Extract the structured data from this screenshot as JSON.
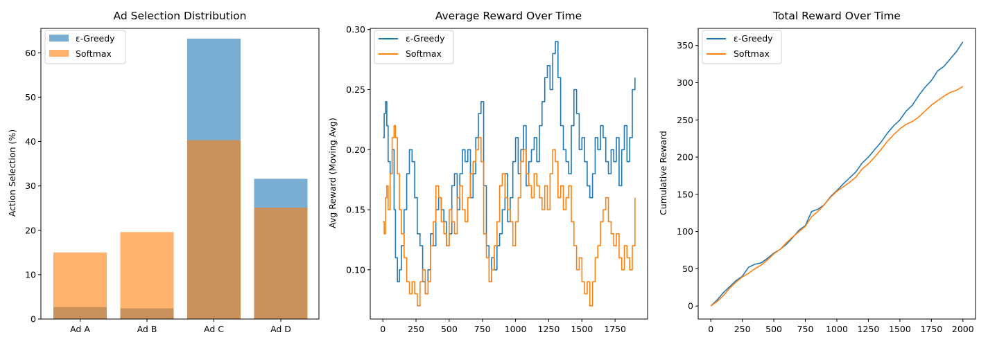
{
  "chart_data": [
    {
      "type": "bar",
      "title": "Ad Selection Distribution",
      "xlabel": "",
      "ylabel": "Action Selection (%)",
      "ylim": [
        0,
        65.5
      ],
      "yticks": [
        0,
        10,
        20,
        30,
        40,
        50,
        60
      ],
      "categories": [
        "Ad A",
        "Ad B",
        "Ad C",
        "Ad D"
      ],
      "legend_position": "top-left",
      "series": [
        {
          "name": "ε-Greedy",
          "color": "#1f77b4",
          "opacity": 0.6,
          "values": [
            2.7,
            2.4,
            63.2,
            31.6
          ]
        },
        {
          "name": "Softmax",
          "color": "#ff7f0e",
          "opacity": 0.6,
          "values": [
            15.0,
            19.6,
            40.3,
            25.1
          ]
        }
      ]
    },
    {
      "type": "line",
      "title": "Average Reward Over Time",
      "xlabel": "",
      "ylabel": "Avg Reward (Moving Avg)",
      "xlim": [
        -95,
        1995
      ],
      "ylim": [
        0.059,
        0.301
      ],
      "xticks": [
        0,
        250,
        500,
        750,
        1000,
        1250,
        1500,
        1750
      ],
      "yticks": [
        0.1,
        0.15,
        0.2,
        0.25,
        0.3
      ],
      "legend_position": "top-left",
      "series": [
        {
          "name": "ε-Greedy",
          "color": "#1f77b4",
          "x": [
            0,
            10,
            20,
            30,
            40,
            55,
            70,
            85,
            95,
            110,
            125,
            140,
            160,
            180,
            200,
            220,
            240,
            260,
            280,
            300,
            320,
            340,
            360,
            380,
            400,
            420,
            440,
            460,
            480,
            500,
            520,
            540,
            560,
            580,
            600,
            620,
            640,
            660,
            680,
            700,
            720,
            740,
            760,
            780,
            800,
            820,
            840,
            860,
            880,
            900,
            920,
            940,
            960,
            980,
            1000,
            1020,
            1040,
            1060,
            1080,
            1100,
            1120,
            1140,
            1160,
            1180,
            1200,
            1220,
            1240,
            1260,
            1280,
            1300,
            1320,
            1340,
            1360,
            1380,
            1400,
            1420,
            1440,
            1460,
            1480,
            1500,
            1520,
            1540,
            1560,
            1580,
            1600,
            1620,
            1640,
            1660,
            1680,
            1700,
            1720,
            1740,
            1760,
            1780,
            1800,
            1820,
            1840,
            1860,
            1880,
            1900
          ],
          "y": [
            0.21,
            0.23,
            0.24,
            0.22,
            0.19,
            0.18,
            0.2,
            0.15,
            0.11,
            0.09,
            0.1,
            0.12,
            0.15,
            0.18,
            0.2,
            0.19,
            0.16,
            0.13,
            0.12,
            0.09,
            0.08,
            0.1,
            0.13,
            0.12,
            0.15,
            0.16,
            0.15,
            0.14,
            0.12,
            0.13,
            0.17,
            0.18,
            0.15,
            0.18,
            0.2,
            0.19,
            0.2,
            0.16,
            0.18,
            0.21,
            0.23,
            0.24,
            0.17,
            0.12,
            0.09,
            0.11,
            0.1,
            0.12,
            0.13,
            0.15,
            0.18,
            0.14,
            0.16,
            0.19,
            0.21,
            0.18,
            0.2,
            0.22,
            0.17,
            0.19,
            0.2,
            0.21,
            0.19,
            0.22,
            0.24,
            0.26,
            0.27,
            0.25,
            0.28,
            0.29,
            0.26,
            0.22,
            0.2,
            0.19,
            0.18,
            0.22,
            0.25,
            0.23,
            0.2,
            0.21,
            0.19,
            0.17,
            0.16,
            0.18,
            0.21,
            0.2,
            0.22,
            0.21,
            0.19,
            0.18,
            0.2,
            0.19,
            0.21,
            0.17,
            0.2,
            0.22,
            0.19,
            0.21,
            0.25,
            0.26
          ]
        },
        {
          "name": "Softmax",
          "color": "#ff7f0e",
          "x": [
            0,
            10,
            20,
            30,
            40,
            55,
            70,
            85,
            95,
            110,
            125,
            140,
            160,
            180,
            200,
            220,
            240,
            260,
            280,
            300,
            320,
            340,
            360,
            380,
            400,
            420,
            440,
            460,
            480,
            500,
            520,
            540,
            560,
            580,
            600,
            620,
            640,
            660,
            680,
            700,
            720,
            740,
            760,
            780,
            800,
            820,
            840,
            860,
            880,
            900,
            920,
            940,
            960,
            980,
            1000,
            1020,
            1040,
            1060,
            1080,
            1100,
            1120,
            1140,
            1160,
            1180,
            1200,
            1220,
            1240,
            1260,
            1280,
            1300,
            1320,
            1340,
            1360,
            1380,
            1400,
            1420,
            1440,
            1460,
            1480,
            1500,
            1520,
            1540,
            1560,
            1580,
            1600,
            1620,
            1640,
            1660,
            1680,
            1700,
            1720,
            1740,
            1760,
            1780,
            1800,
            1820,
            1840,
            1860,
            1880,
            1900
          ],
          "y": [
            0.14,
            0.13,
            0.16,
            0.17,
            0.15,
            0.18,
            0.21,
            0.22,
            0.21,
            0.18,
            0.15,
            0.13,
            0.11,
            0.09,
            0.08,
            0.09,
            0.08,
            0.07,
            0.09,
            0.1,
            0.08,
            0.09,
            0.12,
            0.14,
            0.17,
            0.16,
            0.14,
            0.13,
            0.12,
            0.15,
            0.14,
            0.13,
            0.16,
            0.17,
            0.15,
            0.14,
            0.16,
            0.18,
            0.19,
            0.2,
            0.21,
            0.19,
            0.13,
            0.11,
            0.09,
            0.1,
            0.12,
            0.14,
            0.17,
            0.18,
            0.16,
            0.15,
            0.14,
            0.12,
            0.14,
            0.16,
            0.19,
            0.2,
            0.18,
            0.17,
            0.16,
            0.18,
            0.17,
            0.16,
            0.15,
            0.17,
            0.15,
            0.18,
            0.2,
            0.19,
            0.16,
            0.17,
            0.15,
            0.16,
            0.17,
            0.14,
            0.12,
            0.1,
            0.11,
            0.09,
            0.08,
            0.09,
            0.07,
            0.09,
            0.11,
            0.12,
            0.14,
            0.15,
            0.16,
            0.14,
            0.13,
            0.12,
            0.13,
            0.11,
            0.1,
            0.12,
            0.11,
            0.1,
            0.12,
            0.16
          ]
        }
      ]
    },
    {
      "type": "line",
      "title": "Total Reward Over Time",
      "xlabel": "",
      "ylabel": "Cumulative Reward",
      "xlim": [
        -100,
        2100
      ],
      "ylim": [
        -17.5,
        373
      ],
      "xticks": [
        0,
        250,
        500,
        750,
        1000,
        1250,
        1500,
        1750,
        2000
      ],
      "yticks": [
        0,
        50,
        100,
        150,
        200,
        250,
        300,
        350
      ],
      "legend_position": "top-left",
      "series": [
        {
          "name": "ε-Greedy",
          "color": "#1f77b4",
          "x": [
            0,
            50,
            100,
            150,
            200,
            250,
            300,
            350,
            400,
            450,
            500,
            550,
            600,
            650,
            700,
            750,
            800,
            850,
            900,
            950,
            1000,
            1050,
            1100,
            1150,
            1200,
            1250,
            1300,
            1350,
            1400,
            1450,
            1500,
            1550,
            1600,
            1650,
            1700,
            1750,
            1800,
            1850,
            1900,
            1950,
            2000
          ],
          "y": [
            0,
            8,
            18,
            26,
            34,
            40,
            52,
            56,
            58,
            64,
            71,
            76,
            83,
            92,
            102,
            108,
            127,
            130,
            136,
            147,
            155,
            164,
            172,
            180,
            192,
            200,
            210,
            220,
            232,
            242,
            250,
            262,
            270,
            283,
            294,
            303,
            316,
            322,
            332,
            342,
            355
          ]
        },
        {
          "name": "Softmax",
          "color": "#ff7f0e",
          "x": [
            0,
            50,
            100,
            150,
            200,
            250,
            300,
            350,
            400,
            450,
            500,
            550,
            600,
            650,
            700,
            750,
            800,
            850,
            900,
            950,
            1000,
            1050,
            1100,
            1150,
            1200,
            1250,
            1300,
            1350,
            1400,
            1450,
            1500,
            1550,
            1600,
            1650,
            1700,
            1750,
            1800,
            1850,
            1900,
            1950,
            2000
          ],
          "y": [
            0,
            6,
            14,
            24,
            32,
            39,
            44,
            50,
            55,
            62,
            70,
            76,
            85,
            93,
            100,
            107,
            120,
            127,
            136,
            146,
            154,
            160,
            166,
            173,
            184,
            191,
            200,
            210,
            221,
            230,
            238,
            244,
            248,
            254,
            262,
            270,
            276,
            282,
            287,
            290,
            295
          ]
        }
      ]
    }
  ]
}
